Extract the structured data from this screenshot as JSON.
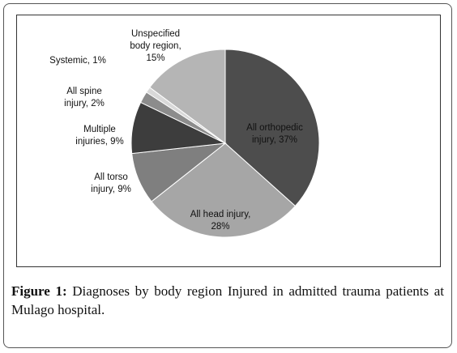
{
  "chart_data": {
    "type": "pie",
    "labels": [
      "All orthopedic\ninjury, 37%",
      "All head injury,\n28%",
      "All torso\ninjury, 9%",
      "Multiple\ninjuries, 9%",
      "All spine\ninjury, 2%",
      "Systemic, 1%",
      "Unspecified\nbody region,\n15%"
    ],
    "values": [
      37,
      28,
      9,
      9,
      2,
      1,
      15
    ],
    "colors": [
      "#4d4d4d",
      "#a6a6a6",
      "#7f7f7f",
      "#3d3d3d",
      "#8c8c8c",
      "#d9d9d9",
      "#b5b5b5"
    ]
  },
  "caption": {
    "label": "Figure 1:",
    "text": "Diagnoses by body region Injured in admitted trauma patients at Mulago hospital."
  }
}
